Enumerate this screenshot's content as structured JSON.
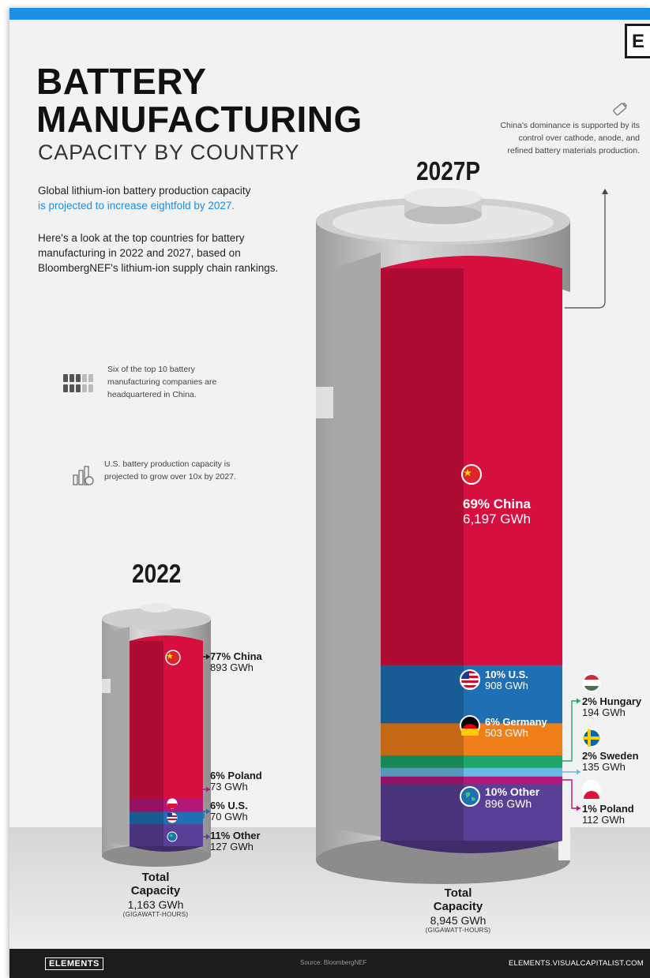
{
  "header": {
    "title_line1": "BATTERY",
    "title_line2": "MANUFACTURING",
    "subtitle": "CAPACITY BY COUNTRY",
    "logo_letter": "E"
  },
  "intro": {
    "line1_start": "Global lithium-ion battery production capacity",
    "line1_highlight": "is projected to increase eightfold by 2027.",
    "paragraph2": "Here's a look at the top countries for battery manufacturing in 2022 and 2027, based on BloombergNEF's lithium-ion supply chain rankings."
  },
  "notes": {
    "companies": "Six of the top 10 battery manufacturing companies are headquartered in China.",
    "us_growth": "U.S. battery production capacity is projected to grow over 10x by 2027.",
    "china_dominance": "China's dominance is supported by its control over cathode, anode, and refined battery materials production."
  },
  "colors": {
    "china": "#d60f3f",
    "us": "#1e6fb3",
    "germany": "#f07f1a",
    "hungary": "#1fa66a",
    "sweden": "#6ab8e8",
    "poland": "#b5167a",
    "other": "#5a3f96"
  },
  "chart_data": [
    {
      "type": "bar",
      "year": "2022",
      "segments": [
        {
          "country": "China",
          "percent": "77%",
          "gwh": 893,
          "value_label": "893 GWh"
        },
        {
          "country": "Poland",
          "percent": "6%",
          "gwh": 73,
          "value_label": "73 GWh"
        },
        {
          "country": "U.S.",
          "percent": "6%",
          "gwh": 70,
          "value_label": "70 GWh"
        },
        {
          "country": "Other",
          "percent": "11%",
          "gwh": 127,
          "value_label": "127 GWh"
        }
      ],
      "total_label": "Total Capacity",
      "total_value": "1,163 GWh",
      "total_unit": "(GIGAWATT-HOURS)"
    },
    {
      "type": "bar",
      "year": "2027P",
      "segments": [
        {
          "country": "China",
          "percent": "69%",
          "gwh": 6197,
          "value_label": "6,197 GWh"
        },
        {
          "country": "U.S.",
          "percent": "10%",
          "gwh": 908,
          "value_label": "908 GWh"
        },
        {
          "country": "Germany",
          "percent": "6%",
          "gwh": 503,
          "value_label": "503 GWh"
        },
        {
          "country": "Hungary",
          "percent": "2%",
          "gwh": 194,
          "value_label": "194 GWh"
        },
        {
          "country": "Sweden",
          "percent": "2%",
          "gwh": 135,
          "value_label": "135 GWh"
        },
        {
          "country": "Poland",
          "percent": "1%",
          "gwh": 112,
          "value_label": "112 GWh"
        },
        {
          "country": "Other",
          "percent": "10%",
          "gwh": 896,
          "value_label": "896 GWh"
        }
      ],
      "total_label": "Total Capacity",
      "total_value": "8,945 GWh",
      "total_unit": "(GIGAWATT-HOURS)"
    }
  ],
  "labels_2022": {
    "china": "77% China",
    "poland": "6% Poland",
    "us": "6% U.S.",
    "other": "11% Other"
  },
  "labels_2027": {
    "china": "69% China",
    "us": "10% U.S.",
    "germany": "6% Germany",
    "hungary": "2% Hungary",
    "sweden": "2% Sweden",
    "poland": "1% Poland",
    "other": "10% Other"
  },
  "total_word1": "Total",
  "total_word2": "Capacity",
  "footer": {
    "brand": "ELEMENTS",
    "source": "Source: BloombergNEF",
    "url": "ELEMENTS.VISUALCAPITALIST.COM"
  }
}
